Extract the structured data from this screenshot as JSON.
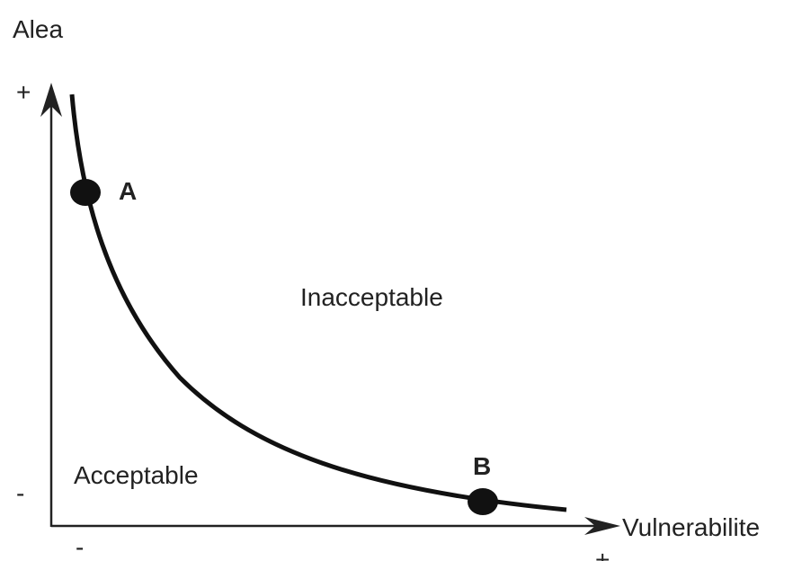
{
  "axes": {
    "y_label": "Alea",
    "y_max": "+",
    "y_min": "-",
    "x_label": "Vulnerabilite",
    "x_min": "-",
    "x_max": "+"
  },
  "points": [
    {
      "label": "A"
    },
    {
      "label": "B"
    }
  ],
  "regions": [
    {
      "label": "Inacceptable"
    },
    {
      "label": "Acceptable"
    }
  ]
}
